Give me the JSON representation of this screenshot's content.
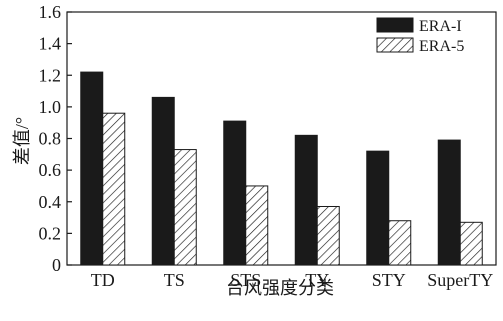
{
  "chart_data": {
    "type": "bar",
    "title": "",
    "xlabel": "台风强度分类",
    "ylabel": "差值/°",
    "categories": [
      "TD",
      "TS",
      "STS",
      "TY",
      "STY",
      "SuperTY"
    ],
    "series": [
      {
        "name": "ERA-I",
        "values": [
          1.22,
          1.06,
          0.91,
          0.82,
          0.72,
          0.79
        ],
        "fill": "#1a1a1a",
        "pattern": "solid"
      },
      {
        "name": "ERA-5",
        "values": [
          0.96,
          0.73,
          0.5,
          0.37,
          0.28,
          0.27
        ],
        "fill": "#ffffff",
        "pattern": "diagonal-hatch"
      }
    ],
    "ylim": [
      0,
      1.6
    ],
    "yticks": [
      "0",
      "0.2",
      "0.4",
      "0.6",
      "0.8",
      "1.0",
      "1.2",
      "1.4",
      "1.6"
    ],
    "grid": false,
    "legend_position": "top-right"
  }
}
